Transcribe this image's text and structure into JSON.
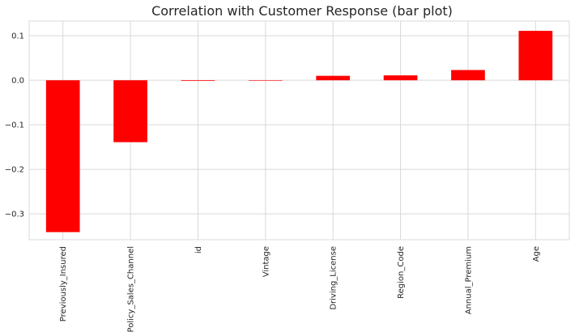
{
  "chart_data": {
    "type": "bar",
    "title": "Correlation with Customer Response (bar plot)",
    "xlabel": "",
    "ylabel": "",
    "categories": [
      "Previously_Insured",
      "Policy_Sales_Channel",
      "id",
      "Vintage",
      "Driving_License",
      "Region_Code",
      "Annual_Premium",
      "Age"
    ],
    "values": [
      -0.341,
      -0.139,
      -0.0014,
      -0.001,
      0.01,
      0.011,
      0.023,
      0.111
    ],
    "ylim": [
      -0.358,
      0.133
    ],
    "yticks": [
      0.1,
      0.0,
      -0.1,
      -0.2,
      -0.3
    ],
    "ytick_labels": [
      "0.1",
      "0.0",
      "−0.1",
      "−0.2",
      "−0.3"
    ],
    "bar_color": "#ff0000",
    "grid": true
  }
}
